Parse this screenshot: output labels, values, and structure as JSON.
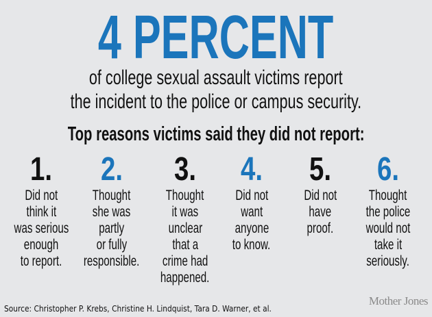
{
  "headline": "4 PERCENT",
  "subtitle": [
    "of college sexual assault victims report",
    "the incident to the police or campus security."
  ],
  "reasons_title": "Top reasons victims said they did not report:",
  "reasons": [
    {
      "number": "1.",
      "color": "#111111",
      "lines": [
        "Did not",
        "think it",
        "was serious",
        "enough",
        "to report."
      ]
    },
    {
      "number": "2.",
      "color": "#1b75bb",
      "lines": [
        "Thought",
        "she was",
        "partly",
        "or fully",
        "responsible."
      ]
    },
    {
      "number": "3.",
      "color": "#111111",
      "lines": [
        "Thought",
        "it was",
        "unclear",
        "that a",
        "crime had",
        "happened."
      ]
    },
    {
      "number": "4.",
      "color": "#1b75bb",
      "lines": [
        "Did not",
        "want",
        "anyone",
        "to know."
      ]
    },
    {
      "number": "5.",
      "color": "#111111",
      "lines": [
        "Did not",
        "have",
        "proof."
      ]
    },
    {
      "number": "6.",
      "color": "#1b75bb",
      "lines": [
        "Thought",
        "the police",
        "would not",
        "take it",
        "seriously."
      ]
    }
  ],
  "source": "Source: Christopher P. Krebs, Christine H. Lindquist, Tara D. Warner, et al.",
  "logo": "Mother Jones",
  "colors": {
    "accent": "#1b75bb",
    "background": "#e6e7e9"
  }
}
